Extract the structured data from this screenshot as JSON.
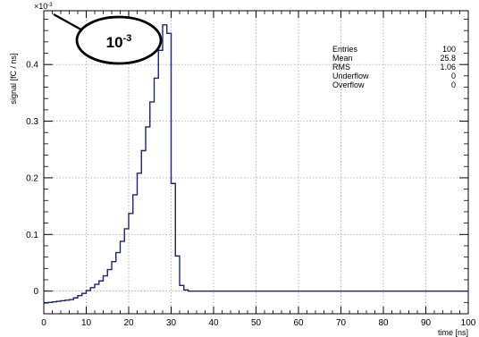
{
  "chart_data": {
    "type": "histogram",
    "xlabel": "time [ns]",
    "ylabel": "signal [fC / ns]",
    "xlim": [
      0,
      100
    ],
    "ylim": [
      -0.04,
      0.495
    ],
    "y_exponent_label": "×10",
    "y_exponent_power": "-3",
    "x_ticks": [
      "0",
      "10",
      "20",
      "30",
      "40",
      "50",
      "60",
      "70",
      "80",
      "90",
      "100"
    ],
    "x_tick_values": [
      0,
      10,
      20,
      30,
      40,
      50,
      60,
      70,
      80,
      90,
      100
    ],
    "y_ticks": [
      "0",
      "0.1",
      "0.2",
      "0.3",
      "0.4"
    ],
    "y_tick_values": [
      0,
      0.1,
      0.2,
      0.3,
      0.4
    ],
    "grid": true,
    "line_color": "#1a237e",
    "bin_edges": [
      0,
      1,
      2,
      3,
      4,
      5,
      6,
      7,
      8,
      9,
      10,
      11,
      12,
      13,
      14,
      15,
      16,
      17,
      18,
      19,
      20,
      21,
      22,
      23,
      24,
      25,
      26,
      27,
      28,
      29,
      30,
      31,
      32,
      33,
      34,
      100
    ],
    "bin_values": [
      -0.021,
      -0.02,
      -0.019,
      -0.018,
      -0.017,
      -0.016,
      -0.015,
      -0.012,
      -0.008,
      -0.004,
      0.001,
      0.006,
      0.012,
      0.018,
      0.027,
      0.038,
      0.052,
      0.068,
      0.088,
      0.11,
      0.137,
      0.17,
      0.208,
      0.248,
      0.29,
      0.334,
      0.376,
      0.425,
      0.47,
      0.455,
      0.19,
      0.062,
      0.01,
      0.002,
      0.0
    ],
    "stats": {
      "rows": [
        {
          "label": "Entries",
          "value": "100"
        },
        {
          "label": "Mean",
          "value": "25.8"
        },
        {
          "label": "RMS",
          "value": "1.06"
        },
        {
          "label": "Underflow",
          "value": "0"
        },
        {
          "label": "Overflow",
          "value": "0"
        }
      ]
    },
    "annotation": {
      "base": "10",
      "power": "-3"
    }
  }
}
